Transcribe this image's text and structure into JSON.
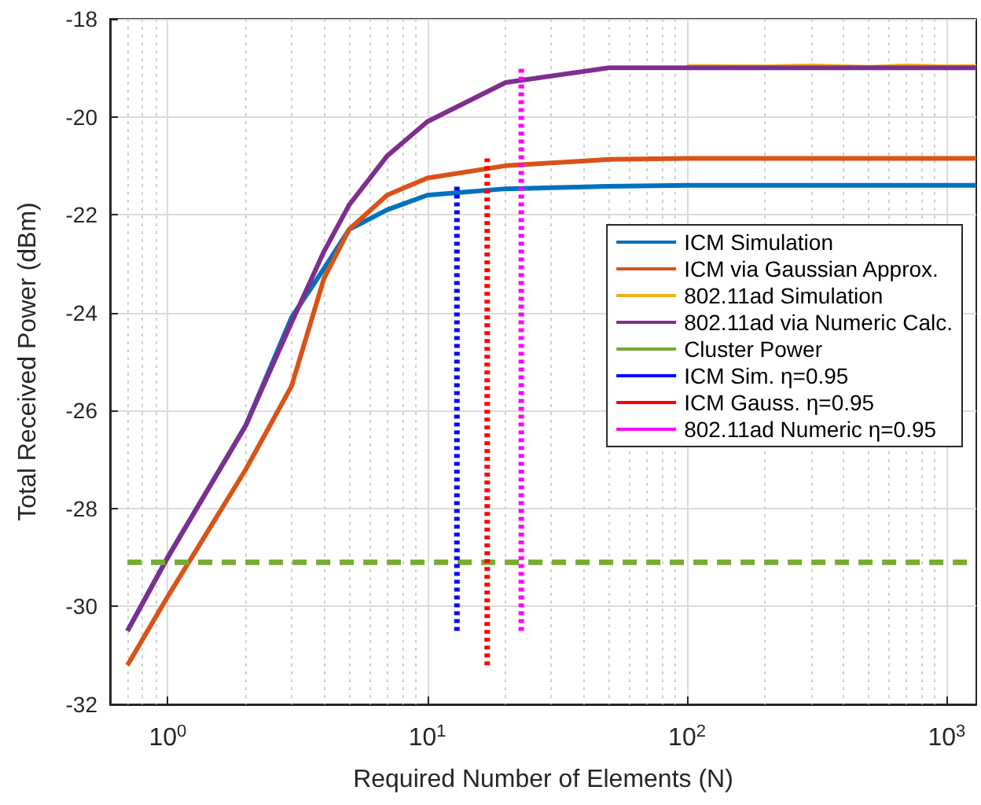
{
  "chart_data": {
    "type": "line",
    "xlabel": "Required Number of Elements (N)",
    "ylabel": "Total Received Power (dBm)",
    "log": "x",
    "grid": true,
    "legend": "right",
    "marker": "none",
    "xlim": [
      0.6,
      1300
    ],
    "xticks": [
      {
        "value": 1,
        "label": "10$^{0}$"
      },
      {
        "value": 10,
        "label": "10$^{1}$"
      },
      {
        "value": 100,
        "label": "10$^{2}$"
      },
      {
        "value": 1000,
        "label": "10$^{3}$"
      }
    ],
    "ylim": [
      -32,
      -18
    ],
    "yticks": [
      -32,
      -30,
      -28,
      -26,
      -24,
      -22,
      -20,
      -18
    ],
    "series": [
      {
        "name": "ICM Simulation",
        "color": "#0072bd",
        "line_style": "solid",
        "x": [
          0.7,
          1,
          2,
          3,
          4,
          5,
          7,
          10,
          20,
          50,
          100,
          1300
        ],
        "values": [
          -30.5,
          -29.0,
          -26.3,
          -24.1,
          -23.1,
          -22.3,
          -21.9,
          -21.6,
          -21.47,
          -21.42,
          -21.4,
          -21.4
        ]
      },
      {
        "name": "ICM via Gaussian Approx.",
        "color": "#d95319",
        "line_style": "solid",
        "x": [
          0.7,
          1,
          2,
          3,
          4,
          5,
          7,
          10,
          20,
          50,
          100,
          1300
        ],
        "values": [
          -31.2,
          -29.8,
          -27.2,
          -25.5,
          -23.3,
          -22.3,
          -21.6,
          -21.25,
          -21.0,
          -20.87,
          -20.85,
          -20.85
        ]
      },
      {
        "name": "802.11ad Simulation",
        "color": "#edb120",
        "line_style": "solid",
        "x": [
          100,
          200,
          300,
          500,
          700,
          1000,
          1300
        ],
        "values": [
          -18.97,
          -18.98,
          -18.96,
          -18.99,
          -18.96,
          -18.98,
          -18.97
        ]
      },
      {
        "name": "802.11ad via Numeric Calc.",
        "color": "#7e2f8e",
        "line_style": "solid",
        "x": [
          0.7,
          1,
          2,
          3,
          4,
          5,
          7,
          10,
          20,
          50,
          100,
          1300
        ],
        "values": [
          -30.5,
          -29.0,
          -26.3,
          -24.2,
          -22.75,
          -21.8,
          -20.8,
          -20.1,
          -19.3,
          -19.0,
          -19.0,
          -19.0
        ]
      },
      {
        "name": "Cluster Power",
        "color": "#77ac30",
        "line_style": "dashed",
        "x": [
          0.7,
          1300
        ],
        "values": [
          -29.1,
          -29.1
        ]
      },
      {
        "name": "ICM Sim. η=0.95",
        "color": "#0000ff",
        "line_style": "dotted",
        "x": [
          13,
          13
        ],
        "values": [
          -30.5,
          -21.4
        ]
      },
      {
        "name": "ICM Gauss. η=0.95",
        "color": "#ff0000",
        "line_style": "dotted",
        "x": [
          17,
          17
        ],
        "values": [
          -31.2,
          -20.85
        ]
      },
      {
        "name": "802.11ad Numeric η=0.95",
        "color": "#ff00ff",
        "line_style": "dotted",
        "x": [
          23,
          23
        ],
        "values": [
          -30.5,
          -19.0
        ]
      }
    ]
  }
}
